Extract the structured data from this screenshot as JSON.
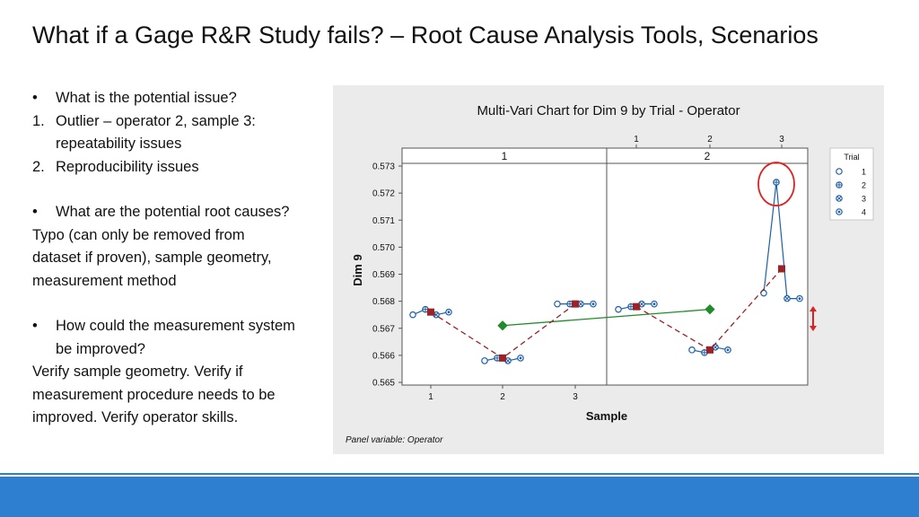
{
  "slide": {
    "title": "What if a Gage R&R Study fails? – Root Cause Analysis Tools, Scenarios"
  },
  "left_text": {
    "b1": "What is the potential issue?",
    "n1_mark": "1.",
    "n1_line1": "Outlier – operator 2, sample 3:",
    "n1_line2": "repeatability issues",
    "n2_mark": "2.",
    "n2_line1": "Reproducibility issues",
    "b2": "What are the potential root causes?",
    "p1_line1": "Typo (can only be removed from",
    "p1_line2": "dataset if proven), sample geometry,",
    "p1_line3": "measurement method",
    "b3_line1": "How could the measurement system",
    "b3_line2": "be improved?",
    "p2_line1": "Verify sample geometry. Verify if",
    "p2_line2": "measurement procedure needs to be",
    "p2_line3": "improved. Verify operator skills.",
    "bullet": "•"
  },
  "colors": {
    "footer": "#2e7fd0",
    "trial_line": "#1f5fa8",
    "sample_mean": "#9b2226",
    "operator_mean": "#1e8c2a",
    "highlight": "#e02020"
  },
  "chart_data": {
    "type": "multi-vari",
    "title": "Multi-Vari Chart for Dim 9 by Trial - Operator",
    "xlabel": "Sample",
    "ylabel": "Dim 9",
    "ylim": [
      0.565,
      0.573
    ],
    "yticks": [
      "0.573",
      "0.572",
      "0.571",
      "0.570",
      "0.569",
      "0.568",
      "0.567",
      "0.566",
      "0.565"
    ],
    "panel_note": "Panel variable: Operator",
    "legend_title": "Trial",
    "legend_position": "right",
    "panels": [
      {
        "label": "1",
        "samples": [
          {
            "sample": "1",
            "trials": [
              0.5675,
              0.5677,
              0.5675,
              0.5676
            ],
            "mean": 0.5676
          },
          {
            "sample": "2",
            "trials": [
              0.5658,
              0.5659,
              0.5658,
              0.5659
            ],
            "mean": 0.5659
          },
          {
            "sample": "3",
            "trials": [
              0.5679,
              0.5679,
              0.5679,
              0.5679
            ],
            "mean": 0.5679
          }
        ],
        "operator_mean": 0.5671
      },
      {
        "label": "2",
        "samples": [
          {
            "sample": "1",
            "trials": [
              0.5677,
              0.5678,
              0.5679,
              0.5679
            ],
            "mean": 0.5678
          },
          {
            "sample": "2",
            "trials": [
              0.5662,
              0.5661,
              0.5663,
              0.5662
            ],
            "mean": 0.5662
          },
          {
            "sample": "3",
            "trials": [
              0.5683,
              0.5724,
              0.5681,
              0.5681
            ],
            "mean": 0.5692
          }
        ],
        "operator_mean": 0.5677
      }
    ],
    "legend": [
      "1",
      "2",
      "3",
      "4"
    ],
    "top_ticks": [
      "1",
      "2",
      "3"
    ]
  }
}
